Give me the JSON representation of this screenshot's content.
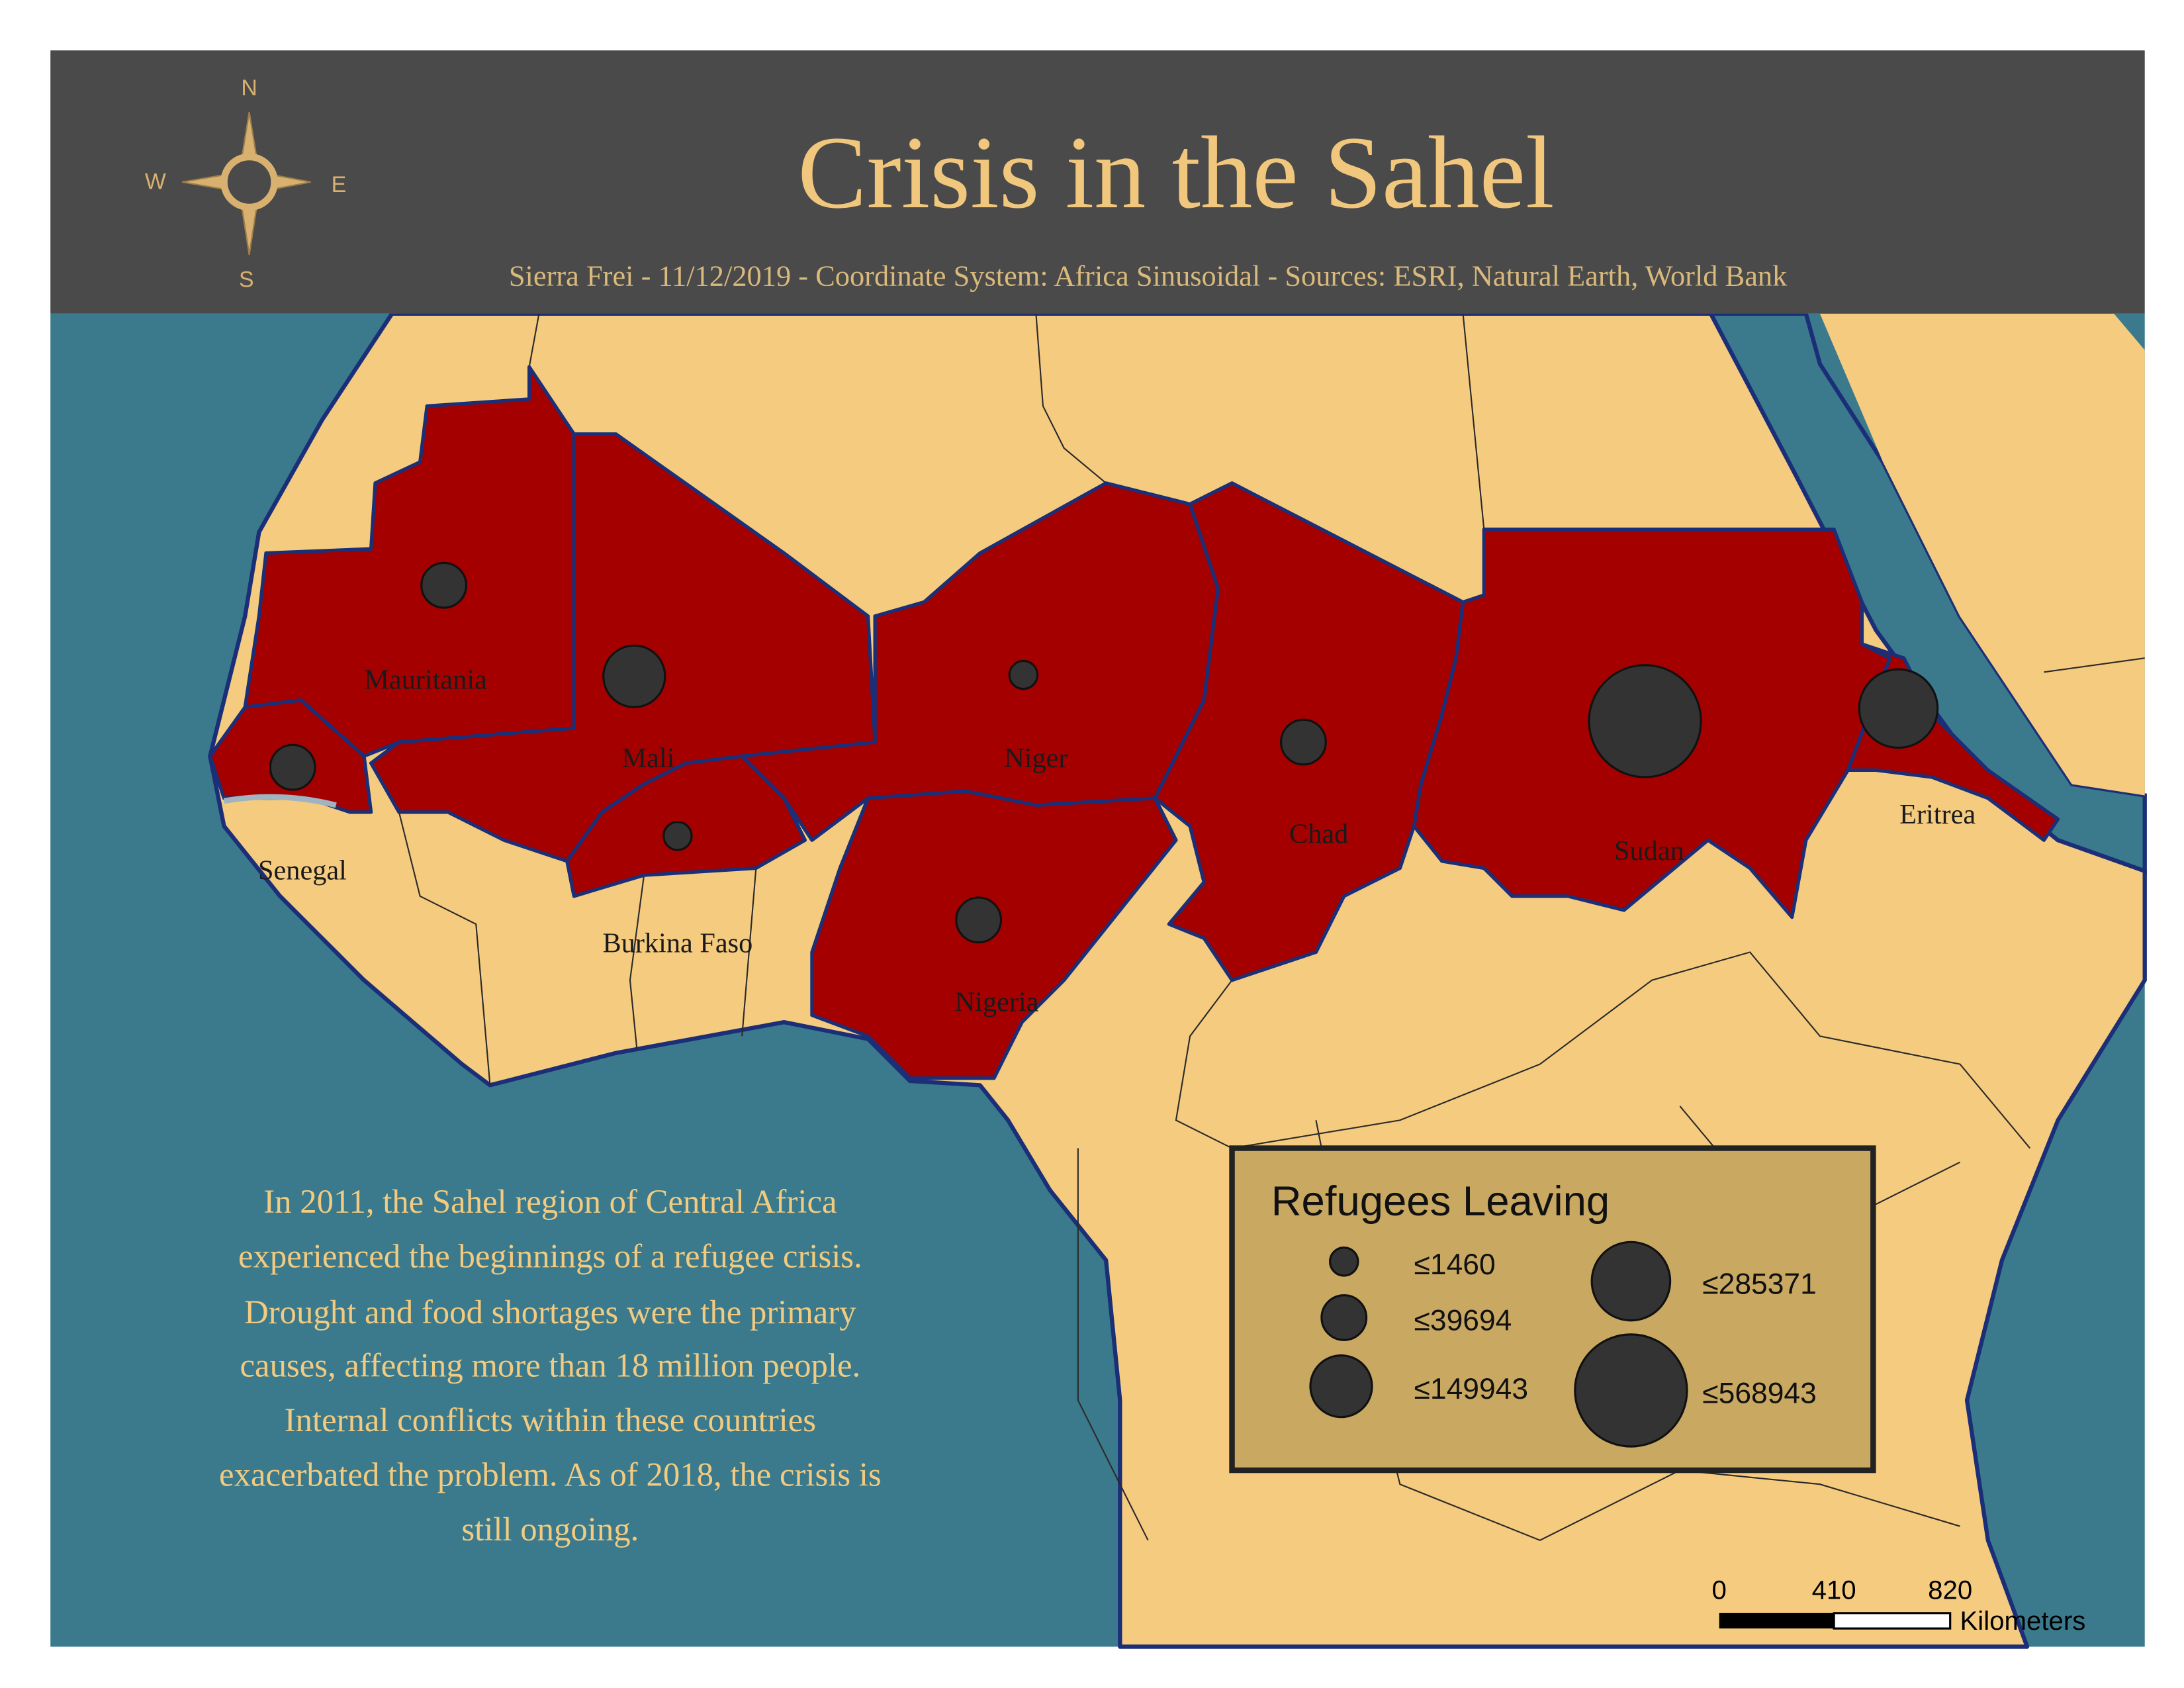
{
  "header": {
    "title": "Crisis in the Sahel",
    "subtitle": "Sierra Frei - 11/12/2019 - Coordinate System: Africa Sinusoidal - Sources: ESRI, Natural Earth, World Bank"
  },
  "compass": {
    "north": "N",
    "south": "S",
    "east": "E",
    "west": "W"
  },
  "countries": [
    "Mauritania",
    "Mali",
    "Niger",
    "Senegal",
    "Burkina Faso",
    "Nigeria",
    "Chad",
    "Sudan",
    "Eritrea"
  ],
  "description": [
    "In 2011, the Sahel region of Central Africa",
    "experienced the beginnings of a refugee crisis.",
    "Drought and food shortages were the primary",
    "causes, affecting more than 18 million people.",
    "Internal conflicts within these countries",
    "exacerbated the problem. As of 2018, the crisis is",
    "still ongoing."
  ],
  "legend": {
    "title": "Refugees Leaving",
    "classes": [
      "≤1460",
      "≤39694",
      "≤149943",
      "≤285371",
      "≤568943"
    ]
  },
  "scale_bar": {
    "ticks": [
      0,
      410,
      820
    ],
    "unit": "Kilometers"
  }
}
